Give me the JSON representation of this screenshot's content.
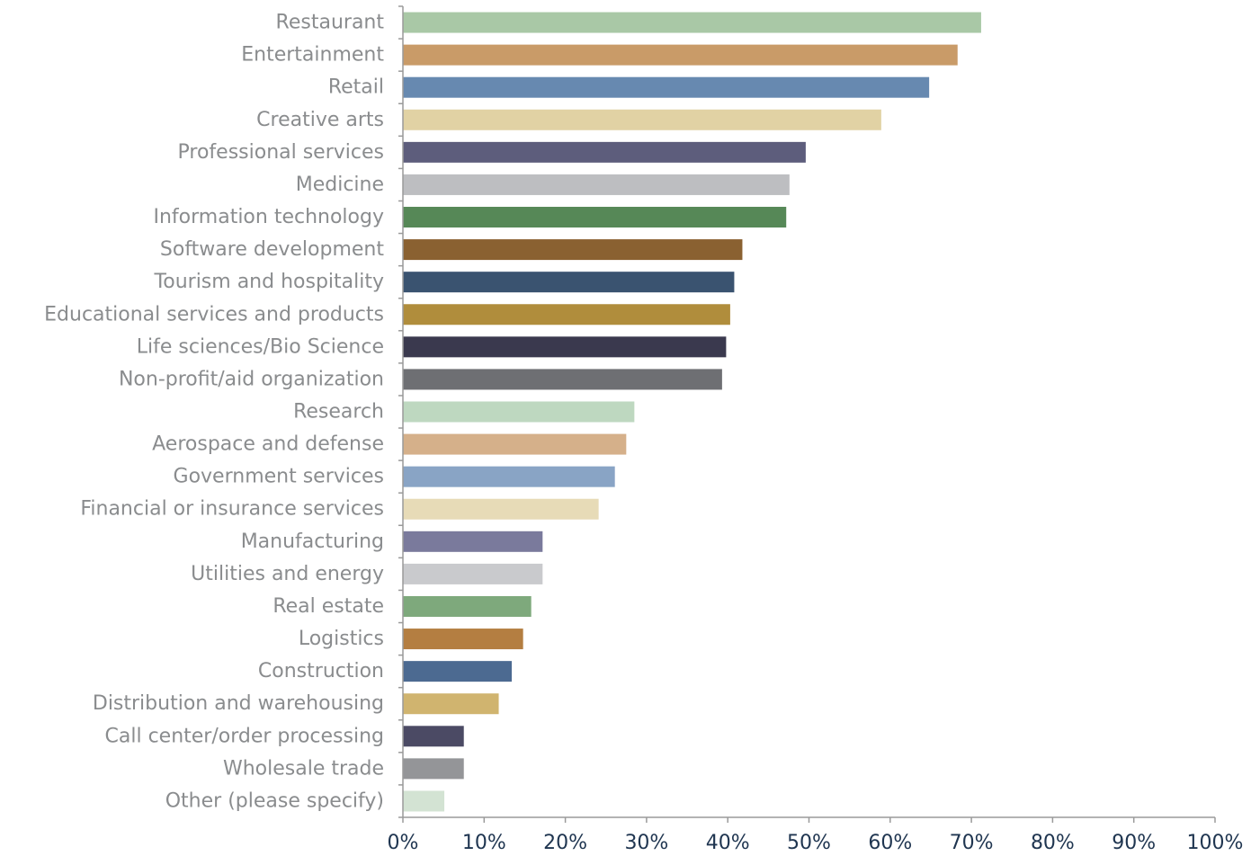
{
  "chart_data": {
    "type": "bar",
    "orientation": "horizontal",
    "title": "",
    "xlabel": "",
    "ylabel": "",
    "xlim": [
      0,
      100
    ],
    "x_ticks": [
      "0%",
      "10%",
      "20%",
      "30%",
      "40%",
      "50%",
      "60%",
      "70%",
      "80%",
      "90%",
      "100%"
    ],
    "grid": false,
    "legend": "none",
    "categories": [
      "Restaurant",
      "Entertainment",
      "Retail",
      "Creative arts",
      "Professional services",
      "Medicine",
      "Information technology",
      "Software development",
      "Tourism and hospitality",
      "Educational services and products",
      "Life sciences/Bio Science",
      "Non-profit/aid organization",
      "Research",
      "Aerospace and defense",
      "Government services",
      "Financial or insurance services",
      "Manufacturing",
      "Utilities and energy",
      "Real estate",
      "Logistics",
      "Construction",
      "Distribution and warehousing",
      "Call center/order processing",
      "Wholesale trade",
      "Other (please specify)"
    ],
    "values": [
      71.2,
      68.3,
      64.8,
      58.9,
      49.6,
      47.6,
      47.2,
      41.8,
      40.8,
      40.3,
      39.8,
      39.3,
      28.5,
      27.5,
      26.1,
      24.1,
      17.2,
      17.2,
      15.8,
      14.8,
      13.4,
      11.8,
      7.5,
      7.5,
      5.1
    ],
    "colors": [
      "#a9c8a6",
      "#c99b68",
      "#6789b0",
      "#e1d2a4",
      "#5d5d7c",
      "#bdbec1",
      "#568857",
      "#8a6131",
      "#3a5370",
      "#b08d3c",
      "#3a394e",
      "#6e6f73",
      "#bed8c0",
      "#d5b08a",
      "#89a4c5",
      "#e7dbb7",
      "#7a7a9c",
      "#c9cacd",
      "#7ea97c",
      "#b47e41",
      "#4c6a91",
      "#d0b46f",
      "#4b4a64",
      "#949598",
      "#d3e3d3"
    ]
  }
}
